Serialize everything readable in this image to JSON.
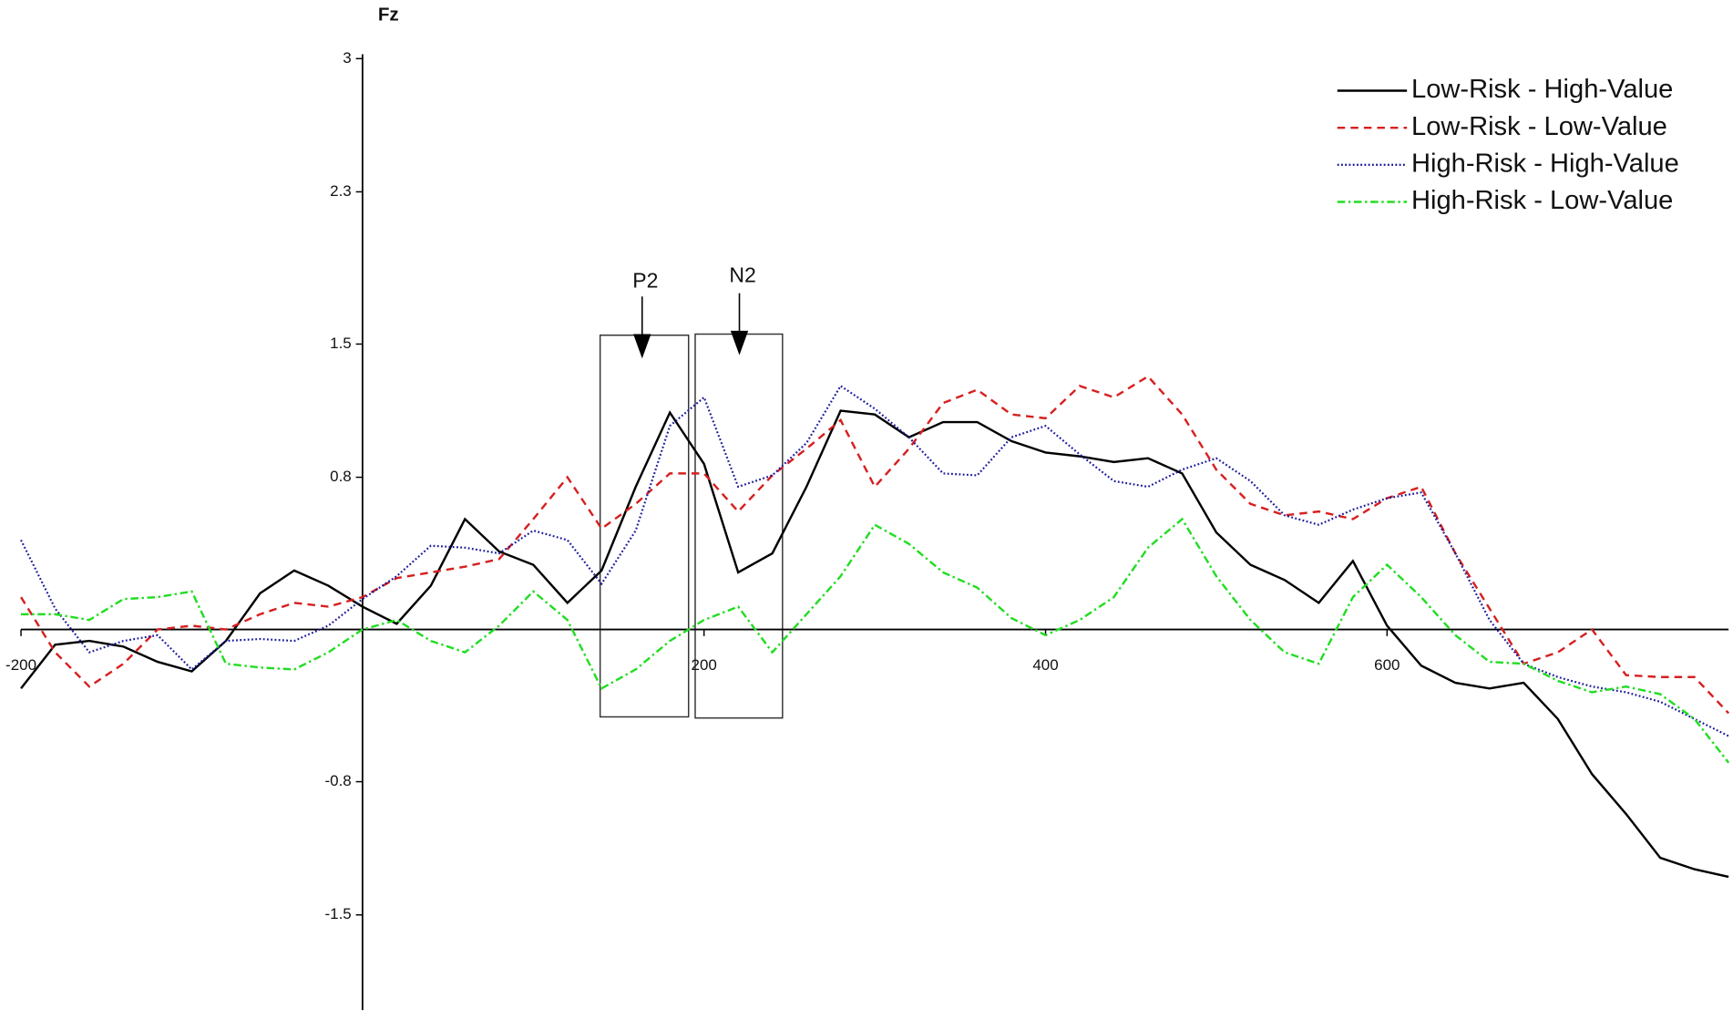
{
  "chart_data": {
    "type": "line",
    "ylabel": "Fz",
    "xlim": [
      -200,
      800
    ],
    "ylim": [
      -2,
      3
    ],
    "xticks": [
      -200,
      200,
      400,
      600
    ],
    "yticks": [
      3,
      2.3,
      1.5,
      0.8,
      -0.8,
      -1.5
    ],
    "legend": "upper right",
    "annotations": [
      "P2",
      "N2"
    ],
    "x": [
      -200,
      -180,
      -160,
      -140,
      -120,
      -100,
      -80,
      -60,
      -40,
      -20,
      0,
      20,
      40,
      60,
      80,
      100,
      120,
      140,
      160,
      180,
      200,
      220,
      240,
      260,
      280,
      300,
      320,
      340,
      360,
      380,
      400,
      420,
      440,
      460,
      480,
      500,
      520,
      540,
      560,
      580,
      600,
      620,
      640,
      660,
      680,
      700,
      720,
      740,
      760,
      780,
      800
    ],
    "series": [
      {
        "name": "Low-Risk - High-Value",
        "color": "#000000",
        "style": "solid",
        "values": [
          -0.31,
          -0.08,
          -0.06,
          -0.09,
          -0.17,
          -0.22,
          -0.06,
          0.19,
          0.31,
          0.23,
          0.12,
          0.03,
          0.23,
          0.58,
          0.41,
          0.34,
          0.14,
          0.31,
          0.75,
          1.14,
          0.87,
          0.3,
          0.4,
          0.75,
          1.15,
          1.13,
          1.01,
          1.09,
          1.09,
          0.99,
          0.93,
          0.91,
          0.88,
          0.9,
          0.82,
          0.51,
          0.34,
          0.26,
          0.14,
          0.36,
          0.02,
          -0.19,
          -0.28,
          -0.31,
          -0.28,
          -0.47,
          -0.76,
          -0.97,
          -1.2,
          -1.26,
          -1.3
        ]
      },
      {
        "name": "Low-Risk - Low-Value",
        "color": "#d62020",
        "style": "dashed",
        "values": [
          0.17,
          -0.12,
          -0.3,
          -0.18,
          0.0,
          0.02,
          0,
          0.08,
          0.14,
          0.12,
          0.17,
          0.27,
          0.3,
          0.33,
          0.37,
          0.58,
          0.8,
          0.53,
          0.66,
          0.82,
          0.82,
          0.62,
          0.81,
          0.95,
          1.1,
          0.75,
          0.95,
          1.19,
          1.26,
          1.13,
          1.11,
          1.28,
          1.22,
          1.33,
          1.13,
          0.84,
          0.66,
          0.6,
          0.62,
          0.58,
          0.69,
          0.75,
          0.4,
          0.11,
          -0.18,
          -0.12,
          0.0,
          -0.24,
          -0.25,
          -0.25,
          -0.44
        ]
      },
      {
        "name": "High-Risk - High-Value",
        "color": "#1a1a9c",
        "style": "dotted",
        "values": [
          0.47,
          0.11,
          -0.12,
          -0.06,
          -0.03,
          -0.21,
          -0.06,
          -0.05,
          -0.06,
          0.02,
          0.16,
          0.28,
          0.44,
          0.43,
          0.4,
          0.52,
          0.47,
          0.24,
          0.52,
          1.07,
          1.22,
          0.75,
          0.81,
          0.98,
          1.28,
          1.16,
          1.01,
          0.82,
          0.81,
          1.01,
          1.07,
          0.92,
          0.78,
          0.75,
          0.84,
          0.9,
          0.78,
          0.6,
          0.55,
          0.63,
          0.69,
          0.72,
          0.4,
          0.05,
          -0.18,
          -0.25,
          -0.3,
          -0.33,
          -0.38,
          -0.47,
          -0.56
        ]
      },
      {
        "name": "High-Risk - Low-Value",
        "color": "#22dd22",
        "style": "dashdot",
        "values": [
          0.08,
          0.08,
          0.05,
          0.16,
          0.17,
          0.2,
          -0.18,
          -0.2,
          -0.21,
          -0.12,
          0.0,
          0.05,
          -0.06,
          -0.12,
          0.02,
          0.2,
          0.05,
          -0.31,
          -0.21,
          -0.06,
          0.05,
          0.12,
          -0.12,
          0.08,
          0.28,
          0.55,
          0.45,
          0.3,
          0.22,
          0.06,
          -0.03,
          0.05,
          0.17,
          0.43,
          0.58,
          0.28,
          0.05,
          -0.12,
          -0.18,
          0.17,
          0.34,
          0.17,
          -0.03,
          -0.17,
          -0.18,
          -0.27,
          -0.33,
          -0.3,
          -0.34,
          -0.47,
          -0.7
        ]
      }
    ]
  }
}
